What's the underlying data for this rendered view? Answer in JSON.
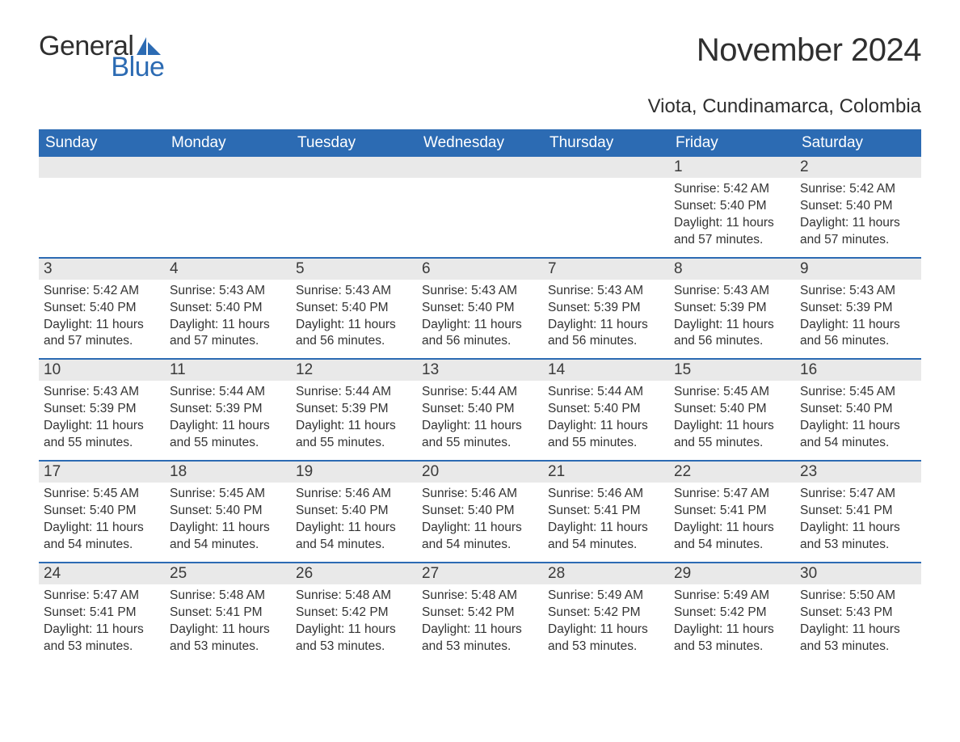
{
  "logo": {
    "text_general": "General",
    "text_blue": "Blue",
    "sail_color": "#2c6bb3"
  },
  "title": "November 2024",
  "location": "Viota, Cundinamarca, Colombia",
  "colors": {
    "header_bg": "#2c6bb3",
    "header_text": "#ffffff",
    "day_number_bg": "#e9e9e9",
    "border": "#2c6bb3",
    "body_text": "#333333",
    "background": "#ffffff"
  },
  "day_headers": [
    "Sunday",
    "Monday",
    "Tuesday",
    "Wednesday",
    "Thursday",
    "Friday",
    "Saturday"
  ],
  "weeks": [
    [
      null,
      null,
      null,
      null,
      null,
      {
        "n": "1",
        "sunrise": "5:42 AM",
        "sunset": "5:40 PM",
        "daylight": "11 hours and 57 minutes."
      },
      {
        "n": "2",
        "sunrise": "5:42 AM",
        "sunset": "5:40 PM",
        "daylight": "11 hours and 57 minutes."
      }
    ],
    [
      {
        "n": "3",
        "sunrise": "5:42 AM",
        "sunset": "5:40 PM",
        "daylight": "11 hours and 57 minutes."
      },
      {
        "n": "4",
        "sunrise": "5:43 AM",
        "sunset": "5:40 PM",
        "daylight": "11 hours and 57 minutes."
      },
      {
        "n": "5",
        "sunrise": "5:43 AM",
        "sunset": "5:40 PM",
        "daylight": "11 hours and 56 minutes."
      },
      {
        "n": "6",
        "sunrise": "5:43 AM",
        "sunset": "5:40 PM",
        "daylight": "11 hours and 56 minutes."
      },
      {
        "n": "7",
        "sunrise": "5:43 AM",
        "sunset": "5:39 PM",
        "daylight": "11 hours and 56 minutes."
      },
      {
        "n": "8",
        "sunrise": "5:43 AM",
        "sunset": "5:39 PM",
        "daylight": "11 hours and 56 minutes."
      },
      {
        "n": "9",
        "sunrise": "5:43 AM",
        "sunset": "5:39 PM",
        "daylight": "11 hours and 56 minutes."
      }
    ],
    [
      {
        "n": "10",
        "sunrise": "5:43 AM",
        "sunset": "5:39 PM",
        "daylight": "11 hours and 55 minutes."
      },
      {
        "n": "11",
        "sunrise": "5:44 AM",
        "sunset": "5:39 PM",
        "daylight": "11 hours and 55 minutes."
      },
      {
        "n": "12",
        "sunrise": "5:44 AM",
        "sunset": "5:39 PM",
        "daylight": "11 hours and 55 minutes."
      },
      {
        "n": "13",
        "sunrise": "5:44 AM",
        "sunset": "5:40 PM",
        "daylight": "11 hours and 55 minutes."
      },
      {
        "n": "14",
        "sunrise": "5:44 AM",
        "sunset": "5:40 PM",
        "daylight": "11 hours and 55 minutes."
      },
      {
        "n": "15",
        "sunrise": "5:45 AM",
        "sunset": "5:40 PM",
        "daylight": "11 hours and 55 minutes."
      },
      {
        "n": "16",
        "sunrise": "5:45 AM",
        "sunset": "5:40 PM",
        "daylight": "11 hours and 54 minutes."
      }
    ],
    [
      {
        "n": "17",
        "sunrise": "5:45 AM",
        "sunset": "5:40 PM",
        "daylight": "11 hours and 54 minutes."
      },
      {
        "n": "18",
        "sunrise": "5:45 AM",
        "sunset": "5:40 PM",
        "daylight": "11 hours and 54 minutes."
      },
      {
        "n": "19",
        "sunrise": "5:46 AM",
        "sunset": "5:40 PM",
        "daylight": "11 hours and 54 minutes."
      },
      {
        "n": "20",
        "sunrise": "5:46 AM",
        "sunset": "5:40 PM",
        "daylight": "11 hours and 54 minutes."
      },
      {
        "n": "21",
        "sunrise": "5:46 AM",
        "sunset": "5:41 PM",
        "daylight": "11 hours and 54 minutes."
      },
      {
        "n": "22",
        "sunrise": "5:47 AM",
        "sunset": "5:41 PM",
        "daylight": "11 hours and 54 minutes."
      },
      {
        "n": "23",
        "sunrise": "5:47 AM",
        "sunset": "5:41 PM",
        "daylight": "11 hours and 53 minutes."
      }
    ],
    [
      {
        "n": "24",
        "sunrise": "5:47 AM",
        "sunset": "5:41 PM",
        "daylight": "11 hours and 53 minutes."
      },
      {
        "n": "25",
        "sunrise": "5:48 AM",
        "sunset": "5:41 PM",
        "daylight": "11 hours and 53 minutes."
      },
      {
        "n": "26",
        "sunrise": "5:48 AM",
        "sunset": "5:42 PM",
        "daylight": "11 hours and 53 minutes."
      },
      {
        "n": "27",
        "sunrise": "5:48 AM",
        "sunset": "5:42 PM",
        "daylight": "11 hours and 53 minutes."
      },
      {
        "n": "28",
        "sunrise": "5:49 AM",
        "sunset": "5:42 PM",
        "daylight": "11 hours and 53 minutes."
      },
      {
        "n": "29",
        "sunrise": "5:49 AM",
        "sunset": "5:42 PM",
        "daylight": "11 hours and 53 minutes."
      },
      {
        "n": "30",
        "sunrise": "5:50 AM",
        "sunset": "5:43 PM",
        "daylight": "11 hours and 53 minutes."
      }
    ]
  ],
  "labels": {
    "sunrise": "Sunrise:",
    "sunset": "Sunset:",
    "daylight": "Daylight:"
  }
}
